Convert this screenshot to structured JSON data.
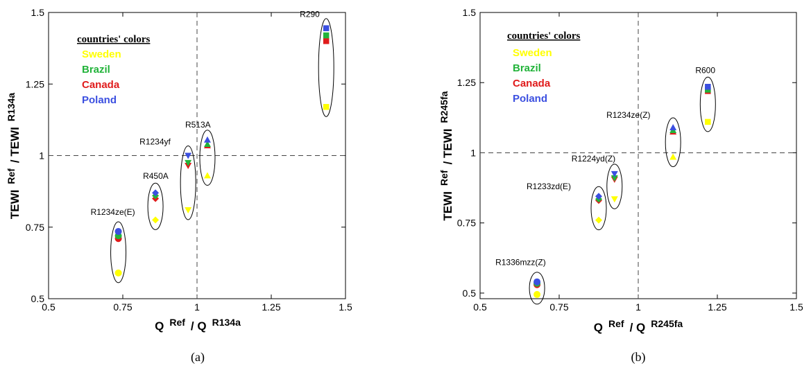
{
  "colors": {
    "Sweden": "#ffff00",
    "Brazil": "#22b33a",
    "Canada": "#e01b1b",
    "Poland": "#3b4fe0"
  },
  "legend": {
    "title": "countries' colors",
    "items": [
      "Sweden",
      "Brazil",
      "Canada",
      "Poland"
    ]
  },
  "chart_data": [
    {
      "type": "scatter",
      "panel_label": "(a)",
      "xlabel": {
        "main": "Q",
        "sub1": "Ref",
        "sep": "/ Q",
        "sub2": "R134a"
      },
      "ylabel": {
        "main": "TEWI",
        "sub1": "Ref",
        "sep": "/ TEWI",
        "sub2": "R134a"
      },
      "xlim": [
        0.5,
        1.5
      ],
      "ylim": [
        0.5,
        1.5
      ],
      "xticks": [
        "0.5",
        "0.75",
        "1",
        "1.25",
        "1.5"
      ],
      "yticks": [
        "0.5",
        "0.75",
        "1",
        "1.25",
        "1.5"
      ],
      "reference_lines": {
        "x": 1,
        "y": 1
      },
      "legend_position": "top-left",
      "groups": [
        {
          "label": "R1234ze(E)",
          "marker": "circle",
          "x": 0.735,
          "values": {
            "Sweden": 0.59,
            "Brazil": 0.72,
            "Canada": 0.71,
            "Poland": 0.735
          }
        },
        {
          "label": "R450A",
          "marker": "diamond",
          "x": 0.86,
          "values": {
            "Sweden": 0.775,
            "Brazil": 0.86,
            "Canada": 0.85,
            "Poland": 0.87
          }
        },
        {
          "label": "R1234yf",
          "marker": "triangle-down",
          "x": 0.97,
          "values": {
            "Sweden": 0.81,
            "Brazil": 0.975,
            "Canada": 0.965,
            "Poland": 1.0
          }
        },
        {
          "label": "R513A",
          "marker": "triangle-up",
          "x": 1.035,
          "values": {
            "Sweden": 0.93,
            "Brazil": 1.04,
            "Canada": 1.035,
            "Poland": 1.055
          }
        },
        {
          "label": "R290",
          "marker": "square",
          "x": 1.435,
          "values": {
            "Sweden": 1.17,
            "Brazil": 1.42,
            "Canada": 1.4,
            "Poland": 1.445
          }
        }
      ]
    },
    {
      "type": "scatter",
      "panel_label": "(b)",
      "xlabel": {
        "main": "Q",
        "sub1": "Ref",
        "sep": "/ Q",
        "sub2": "R245fa"
      },
      "ylabel": {
        "main": "TEWI",
        "sub1": "Ref",
        "sep": "/ TEWI",
        "sub2": "R245fa"
      },
      "xlim": [
        0.5,
        1.5
      ],
      "ylim": [
        0.48,
        1.5
      ],
      "xticks": [
        "0.5",
        "0.75",
        "1",
        "1.25",
        "1.5"
      ],
      "yticks": [
        "0.5",
        "0.75",
        "1",
        "1.25",
        "1.5"
      ],
      "reference_lines": {
        "x": 1,
        "y": 1
      },
      "legend_position": "top-left",
      "groups": [
        {
          "label": "R1336mzz(Z)",
          "marker": "circle",
          "x": 0.68,
          "values": {
            "Sweden": 0.495,
            "Brazil": 0.535,
            "Canada": 0.53,
            "Poland": 0.54
          }
        },
        {
          "label": "R1233zd(E)",
          "marker": "diamond",
          "x": 0.875,
          "values": {
            "Sweden": 0.76,
            "Brazil": 0.835,
            "Canada": 0.83,
            "Poland": 0.845
          }
        },
        {
          "label": "R1224yd(Z)",
          "marker": "triangle-down",
          "x": 0.925,
          "values": {
            "Sweden": 0.835,
            "Brazil": 0.91,
            "Canada": 0.905,
            "Poland": 0.925
          }
        },
        {
          "label": "R1234ze(Z)",
          "marker": "triangle-up",
          "x": 1.11,
          "values": {
            "Sweden": 0.985,
            "Brazil": 1.08,
            "Canada": 1.075,
            "Poland": 1.09
          }
        },
        {
          "label": "R600",
          "marker": "square",
          "x": 1.22,
          "values": {
            "Sweden": 1.11,
            "Brazil": 1.225,
            "Canada": 1.22,
            "Poland": 1.235
          }
        }
      ]
    }
  ]
}
